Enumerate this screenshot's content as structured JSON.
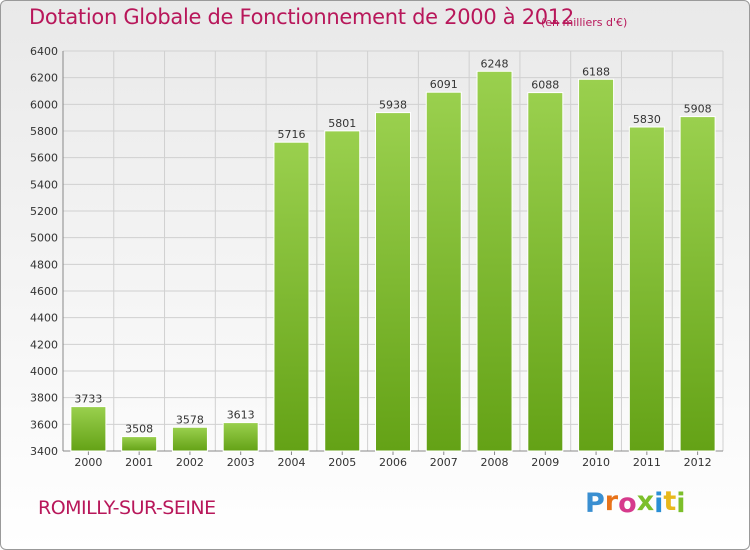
{
  "header": {
    "title": "Dotation Globale de Fonctionnement de 2000 à 2012",
    "unit": "(en milliers d'€)"
  },
  "footer": {
    "commune": "ROMILLY-SUR-SEINE",
    "logo_text": "Proxiti",
    "logo_colors": [
      "#3a8fd1",
      "#e8731a",
      "#d63a8c",
      "#7cbf2a",
      "#2a8fd6",
      "#e8b81a",
      "#7cbf2a"
    ]
  },
  "colors": {
    "title": "#b8175a",
    "bar_light": "#9ad04e",
    "bar_dark": "#6aa81c",
    "grid": "#d0d0d0",
    "axis_text": "#333333"
  },
  "chart_data": {
    "type": "bar",
    "title": "Dotation Globale de Fonctionnement de 2000 à 2012",
    "subtitle": "(en milliers d'€)",
    "categories": [
      "2000",
      "2001",
      "2002",
      "2003",
      "2004",
      "2005",
      "2006",
      "2007",
      "2008",
      "2009",
      "2010",
      "2011",
      "2012"
    ],
    "values": [
      3733,
      3508,
      3578,
      3613,
      5716,
      5801,
      5938,
      6091,
      6248,
      6088,
      6188,
      5830,
      5908
    ],
    "ylim": [
      3400,
      6400
    ],
    "yticks": [
      3400,
      3600,
      3800,
      4000,
      4200,
      4400,
      4600,
      4800,
      5000,
      5200,
      5400,
      5600,
      5800,
      6000,
      6200,
      6400
    ],
    "grid": true,
    "xlabel": "",
    "ylabel": ""
  }
}
